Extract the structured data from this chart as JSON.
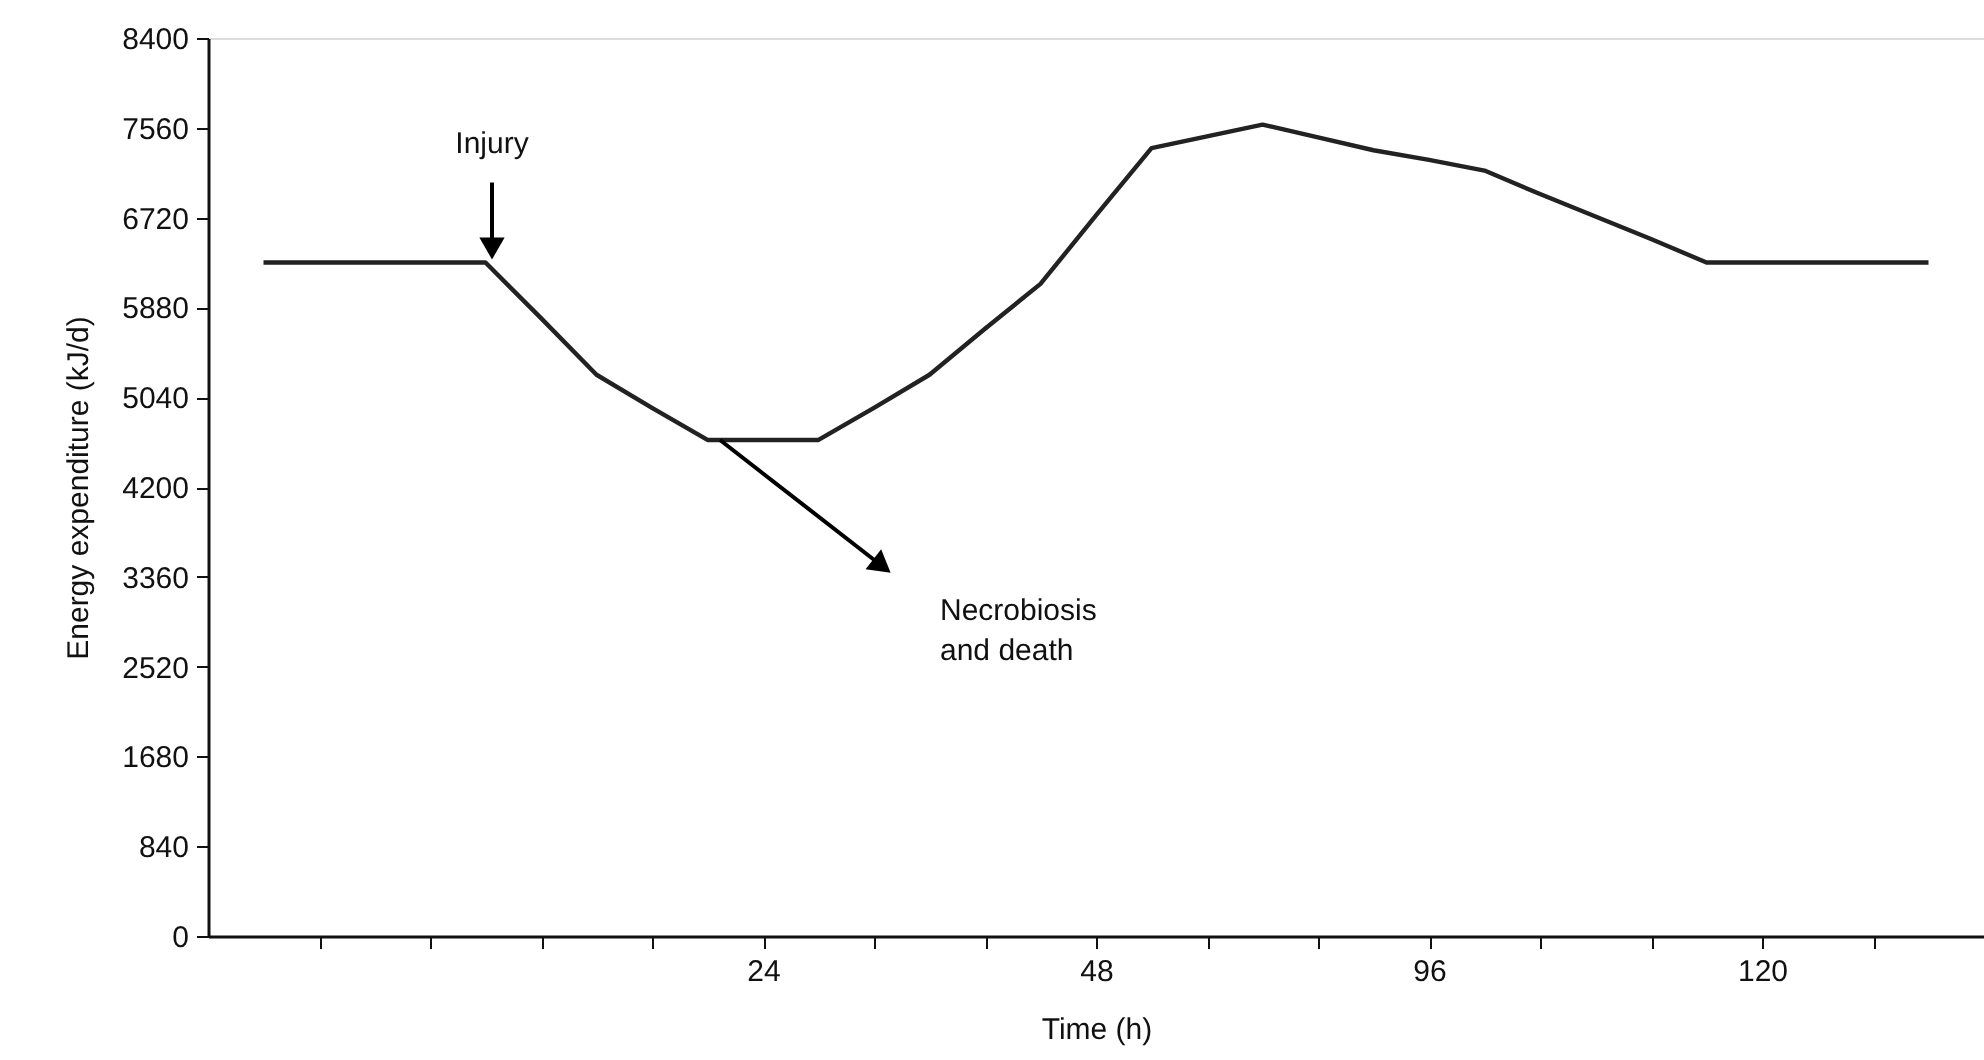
{
  "chart_data": {
    "type": "line",
    "xlabel": "Time (h)",
    "ylabel": "Energy expenditure (kJ/d)",
    "categories": [
      null,
      null,
      null,
      null,
      null,
      null,
      null,
      null,
      null,
      "24",
      null,
      null,
      null,
      null,
      null,
      "48",
      null,
      null,
      null,
      null,
      null,
      "96",
      null,
      null,
      null,
      null,
      null,
      "120",
      null,
      null,
      null
    ],
    "series": [
      {
        "color": "#222222",
        "values": [
          6300,
          6300,
          6300,
          6300,
          6300,
          5780,
          5250,
          4940,
          4640,
          4640,
          4640,
          4940,
          5250,
          5680,
          6100,
          6740,
          7370,
          7480,
          7590,
          7470,
          7350,
          7260,
          7160,
          6940,
          6730,
          6520,
          6300,
          6300,
          6300,
          6300,
          6300
        ]
      }
    ],
    "ylim": [
      0,
      8400
    ],
    "yticks": [
      0,
      840,
      1680,
      2520,
      3360,
      4200,
      5040,
      5880,
      6720,
      7560,
      8400
    ],
    "grid": false,
    "marker": "none",
    "line_style": "solid",
    "annotations": [
      {
        "text": "Injury",
        "y": 6300
      },
      "Necrobiosis\nand death"
    ]
  }
}
